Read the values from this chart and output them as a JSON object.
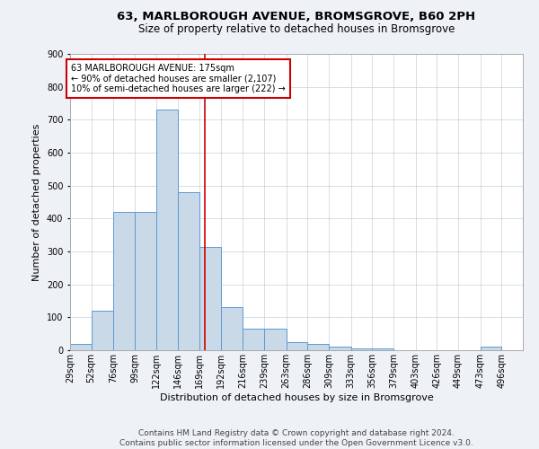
{
  "title": "63, MARLBOROUGH AVENUE, BROMSGROVE, B60 2PH",
  "subtitle": "Size of property relative to detached houses in Bromsgrove",
  "xlabel": "Distribution of detached houses by size in Bromsgrove",
  "ylabel": "Number of detached properties",
  "bin_labels": [
    "29sqm",
    "52sqm",
    "76sqm",
    "99sqm",
    "122sqm",
    "146sqm",
    "169sqm",
    "192sqm",
    "216sqm",
    "239sqm",
    "263sqm",
    "286sqm",
    "309sqm",
    "333sqm",
    "356sqm",
    "379sqm",
    "403sqm",
    "426sqm",
    "449sqm",
    "473sqm",
    "496sqm"
  ],
  "bin_edges": [
    29,
    52,
    76,
    99,
    122,
    146,
    169,
    192,
    216,
    239,
    263,
    286,
    309,
    333,
    356,
    379,
    403,
    426,
    449,
    473,
    496
  ],
  "bar_heights": [
    20,
    121,
    420,
    420,
    730,
    480,
    315,
    130,
    65,
    65,
    25,
    20,
    10,
    5,
    5,
    0,
    0,
    0,
    0,
    10,
    0
  ],
  "bar_color": "#c9d9e8",
  "bar_edge_color": "#5b9bd5",
  "property_size": 175,
  "vline_color": "#cc0000",
  "annotation_box_color": "#cc0000",
  "annotation_text_line1": "63 MARLBOROUGH AVENUE: 175sqm",
  "annotation_text_line2": "← 90% of detached houses are smaller (2,107)",
  "annotation_text_line3": "10% of semi-detached houses are larger (222) →",
  "footer_line1": "Contains HM Land Registry data © Crown copyright and database right 2024.",
  "footer_line2": "Contains public sector information licensed under the Open Government Licence v3.0.",
  "ylim": [
    0,
    900
  ],
  "yticks": [
    0,
    100,
    200,
    300,
    400,
    500,
    600,
    700,
    800,
    900
  ],
  "background_color": "#eef2f7",
  "plot_background": "#ffffff",
  "grid_color": "#c8d0da",
  "title_fontsize": 9.5,
  "subtitle_fontsize": 8.5,
  "axis_label_fontsize": 8,
  "tick_fontsize": 7,
  "annotation_fontsize": 7,
  "footer_fontsize": 6.5
}
